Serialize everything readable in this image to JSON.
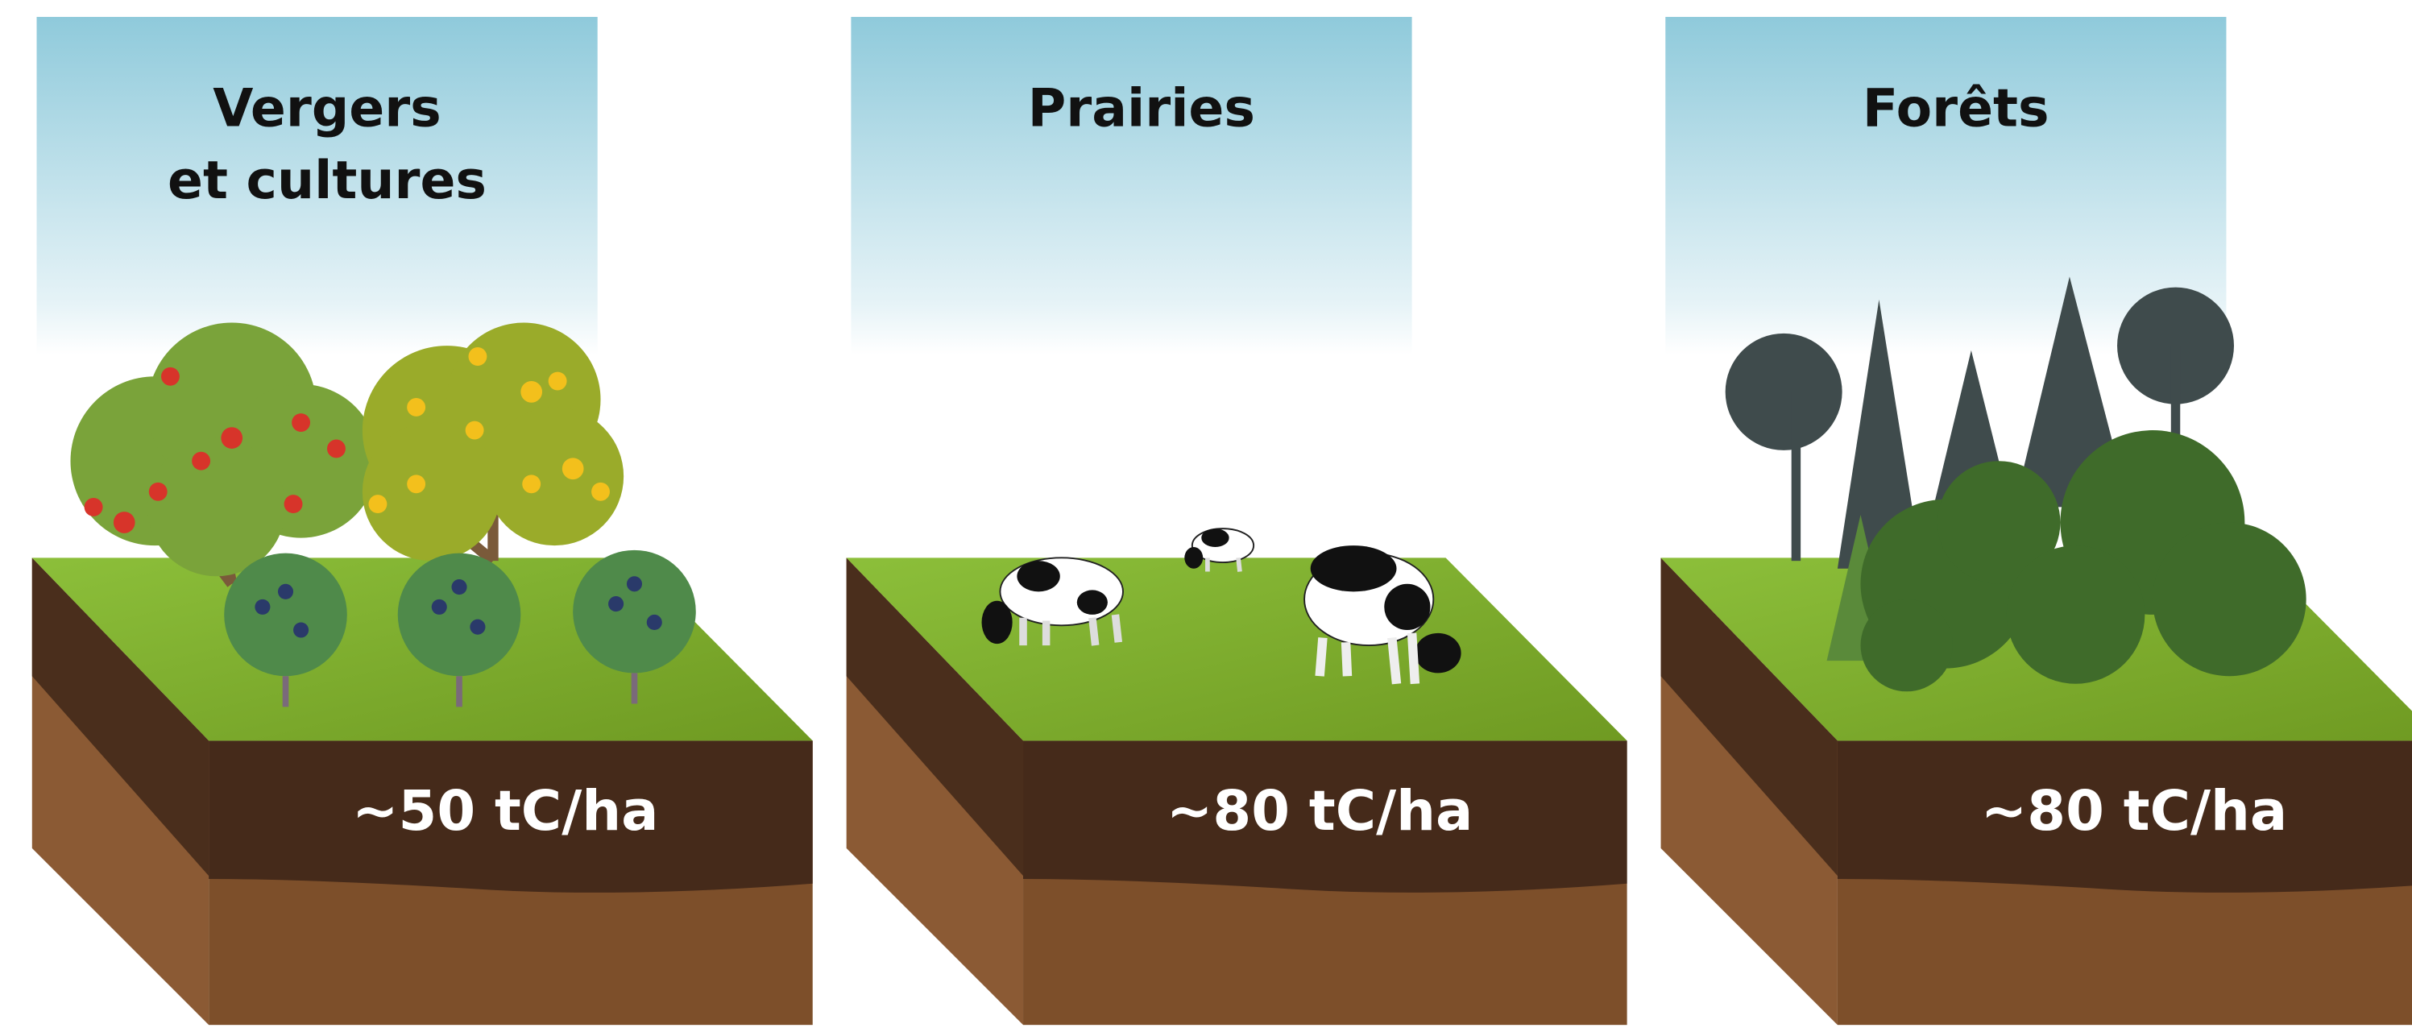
{
  "panels": [
    {
      "title": [
        "Vergers",
        "et cultures"
      ],
      "amount": "~50 tC/ha"
    },
    {
      "title": [
        "Prairies"
      ],
      "amount": "~80 tC/ha"
    },
    {
      "title": [
        "Forêts"
      ],
      "amount": "~80 tC/ha"
    }
  ]
}
